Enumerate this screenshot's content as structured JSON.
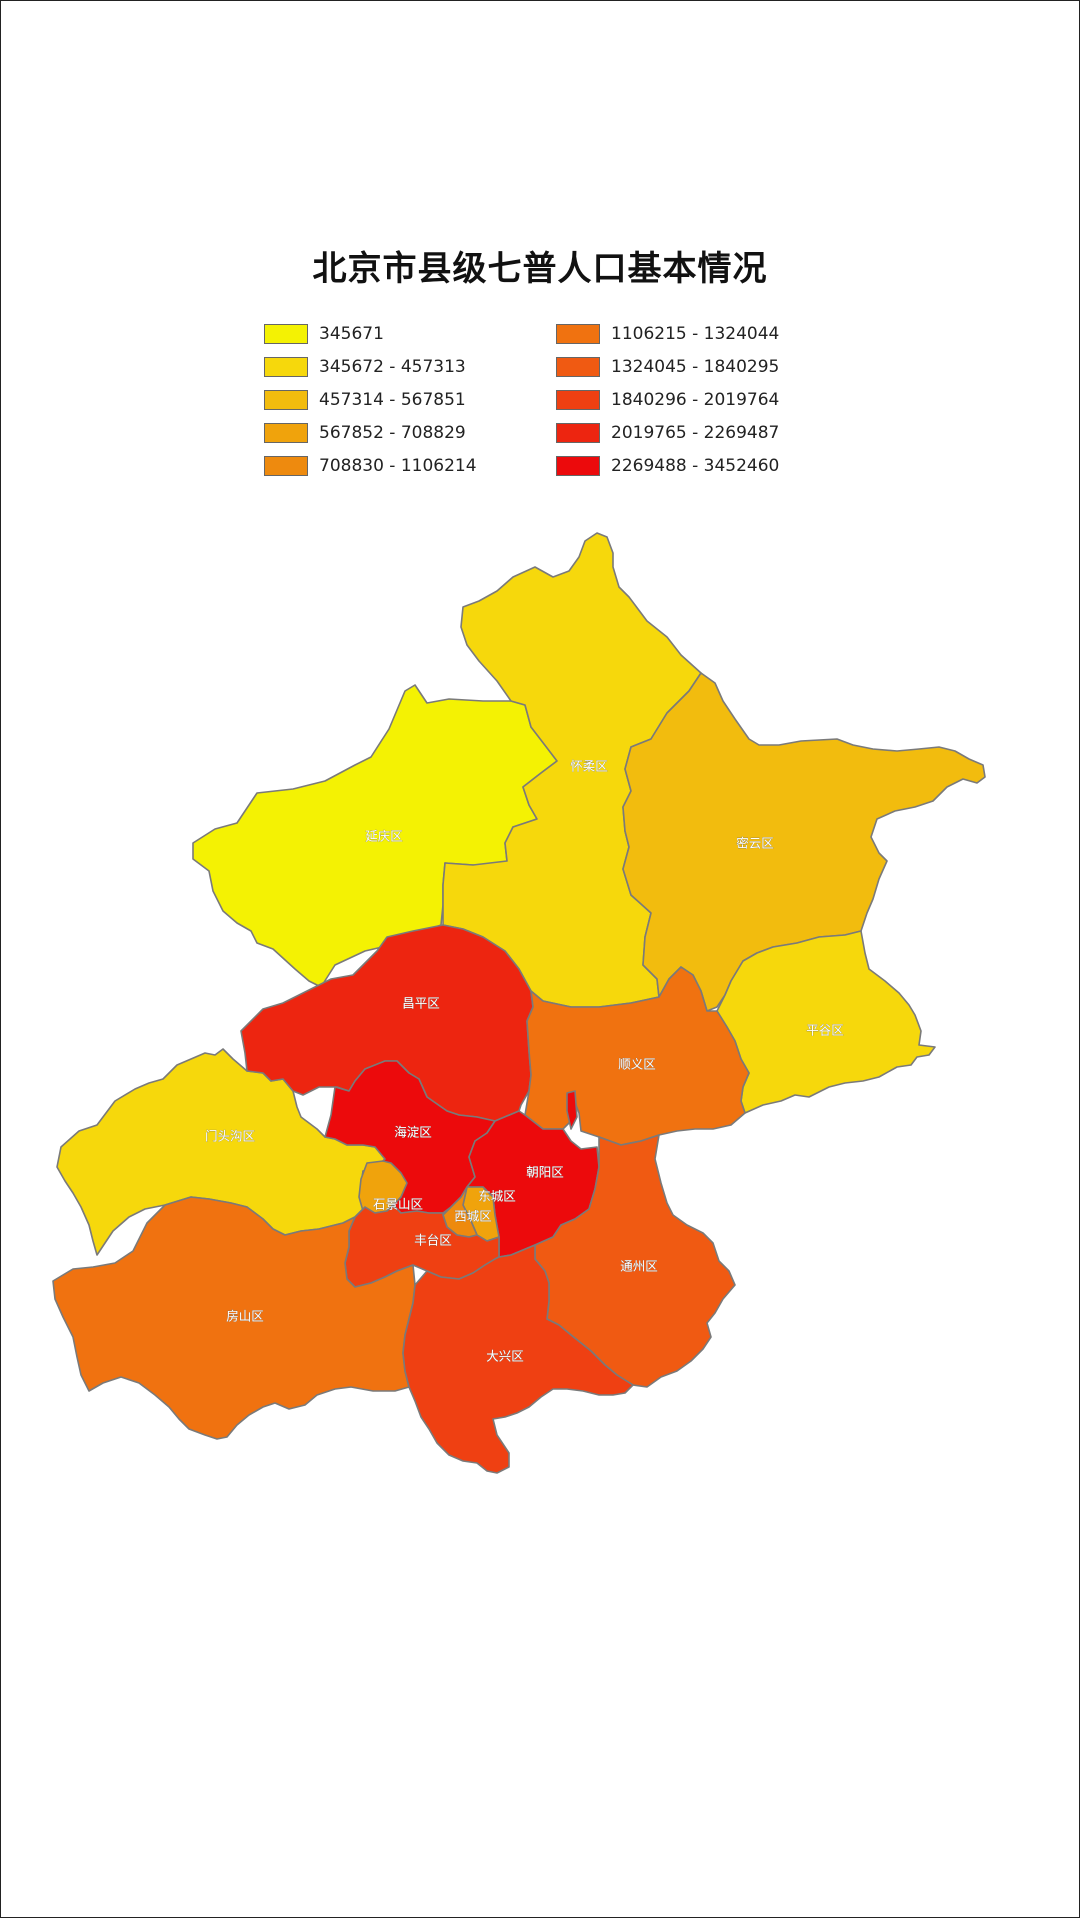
{
  "title": "北京市县级七普人口基本情况",
  "legend": [
    {
      "label": "345671",
      "color": "#f4f203"
    },
    {
      "label": "345672 - 457313",
      "color": "#f6d80c"
    },
    {
      "label": "457314 - 567851",
      "color": "#f2bc0e"
    },
    {
      "label": "567852 - 708829",
      "color": "#f0a30c"
    },
    {
      "label": "708830 - 1106214",
      "color": "#ee8a0e"
    },
    {
      "label": "1106215 - 1324044",
      "color": "#f07210"
    },
    {
      "label": "1324045 - 1840295",
      "color": "#f05a12"
    },
    {
      "label": "1840296 - 2019764",
      "color": "#ef4012"
    },
    {
      "label": "2019765 - 2269487",
      "color": "#ed2510"
    },
    {
      "label": "2269488 - 3452460",
      "color": "#ec0a0c"
    }
  ],
  "districts": [
    {
      "name": "延庆区",
      "color": "#f4f203"
    },
    {
      "name": "怀柔区",
      "color": "#f6d80c"
    },
    {
      "name": "密云区",
      "color": "#f2bc0e"
    },
    {
      "name": "平谷区",
      "color": "#f6d80c"
    },
    {
      "name": "门头沟区",
      "color": "#f6d80c"
    },
    {
      "name": "昌平区",
      "color": "#ed2510"
    },
    {
      "name": "顺义区",
      "color": "#f07210"
    },
    {
      "name": "海淀区",
      "color": "#ec0a0c"
    },
    {
      "name": "朝阳区",
      "color": "#ec0a0c"
    },
    {
      "name": "石景山区",
      "color": "#f0a30c"
    },
    {
      "name": "东城区",
      "color": "#f0a30c"
    },
    {
      "name": "西城区",
      "color": "#ee8a0e"
    },
    {
      "name": "丰台区",
      "color": "#ef4012"
    },
    {
      "name": "通州区",
      "color": "#f05a12"
    },
    {
      "name": "房山区",
      "color": "#f07210"
    },
    {
      "name": "大兴区",
      "color": "#ef4012"
    }
  ]
}
